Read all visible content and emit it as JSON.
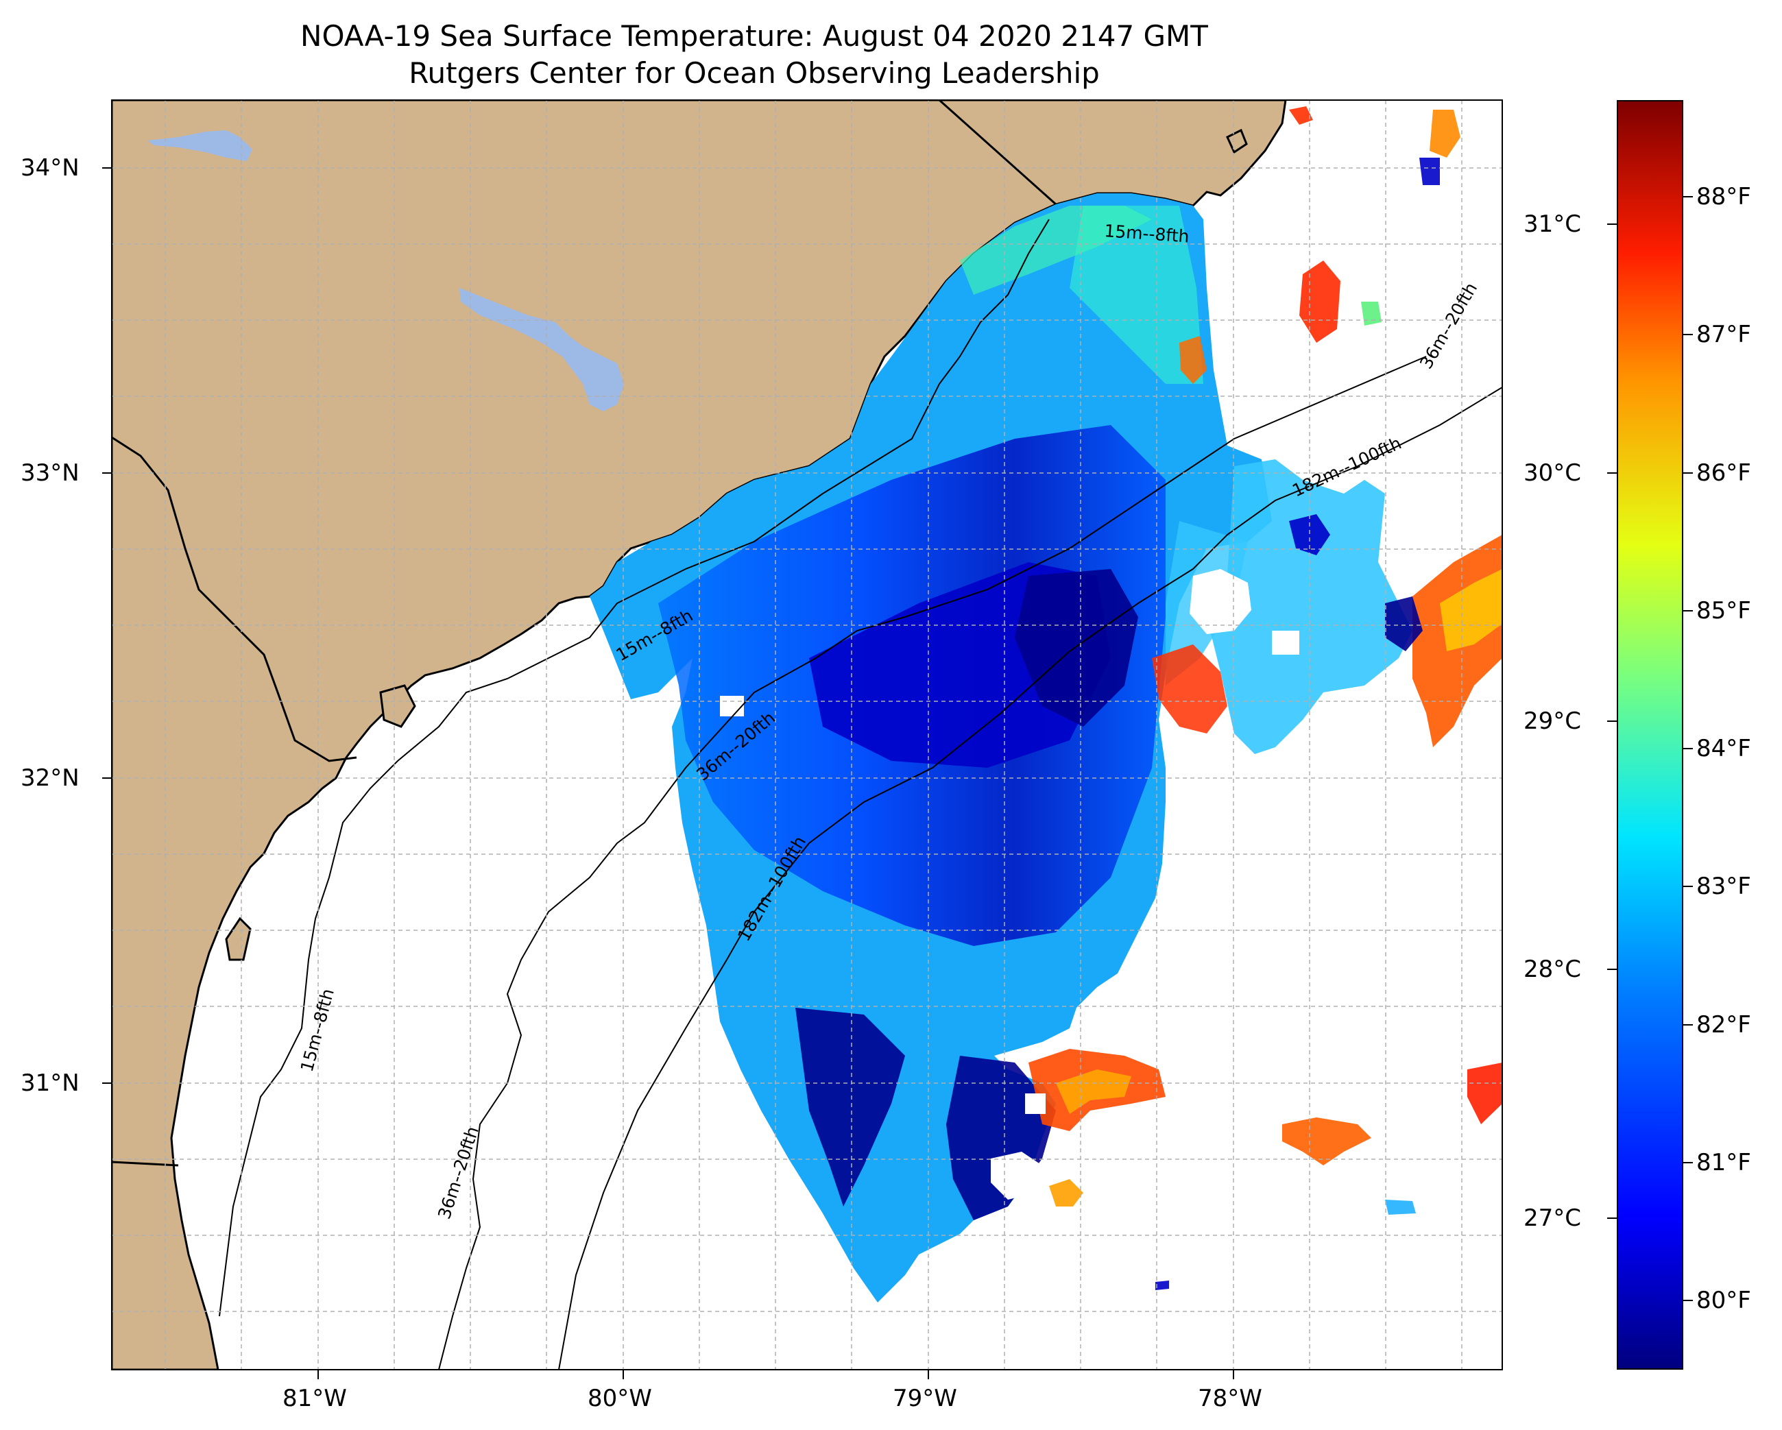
{
  "title": {
    "line1": "NOAA-19 Sea Surface Temperature: August 04 2020 2147 GMT",
    "line2": "Rutgers Center for Ocean Observing Leadership"
  },
  "map": {
    "extent_lon": [
      -81.67,
      -77.13
    ],
    "extent_lat": [
      30.12,
      34.22
    ],
    "land_color": "#d2b48c",
    "water_color": "#ffffff",
    "lake_color": "#9db9e6",
    "grid": true,
    "lat_ticks": [
      "34°N",
      "33°N",
      "32°N",
      "31°N"
    ],
    "lon_ticks": [
      "81°W",
      "80°W",
      "79°W",
      "78°W"
    ]
  },
  "isobaths": [
    {
      "label": "15m--8fth"
    },
    {
      "label": "15m--8fth"
    },
    {
      "label": "15m--8fth"
    },
    {
      "label": "36m--20fth"
    },
    {
      "label": "36m--20fth"
    },
    {
      "label": "36m--20fth"
    },
    {
      "label": "182m--100fth"
    },
    {
      "label": "182m--100fth"
    }
  ],
  "colorbar": {
    "type": "jet",
    "celsius_labels": [
      "31°C",
      "30°C",
      "29°C",
      "28°C",
      "27°C"
    ],
    "celsius_values": [
      31,
      30,
      29,
      28,
      27
    ],
    "fahrenheit_labels": [
      "88°F",
      "87°F",
      "86°F",
      "85°F",
      "84°F",
      "83°F",
      "82°F",
      "81°F",
      "80°F"
    ],
    "fahrenheit_values": [
      88,
      87,
      86,
      85,
      84,
      83,
      82,
      81,
      80
    ],
    "range_f": [
      79.5,
      88.7
    ]
  }
}
